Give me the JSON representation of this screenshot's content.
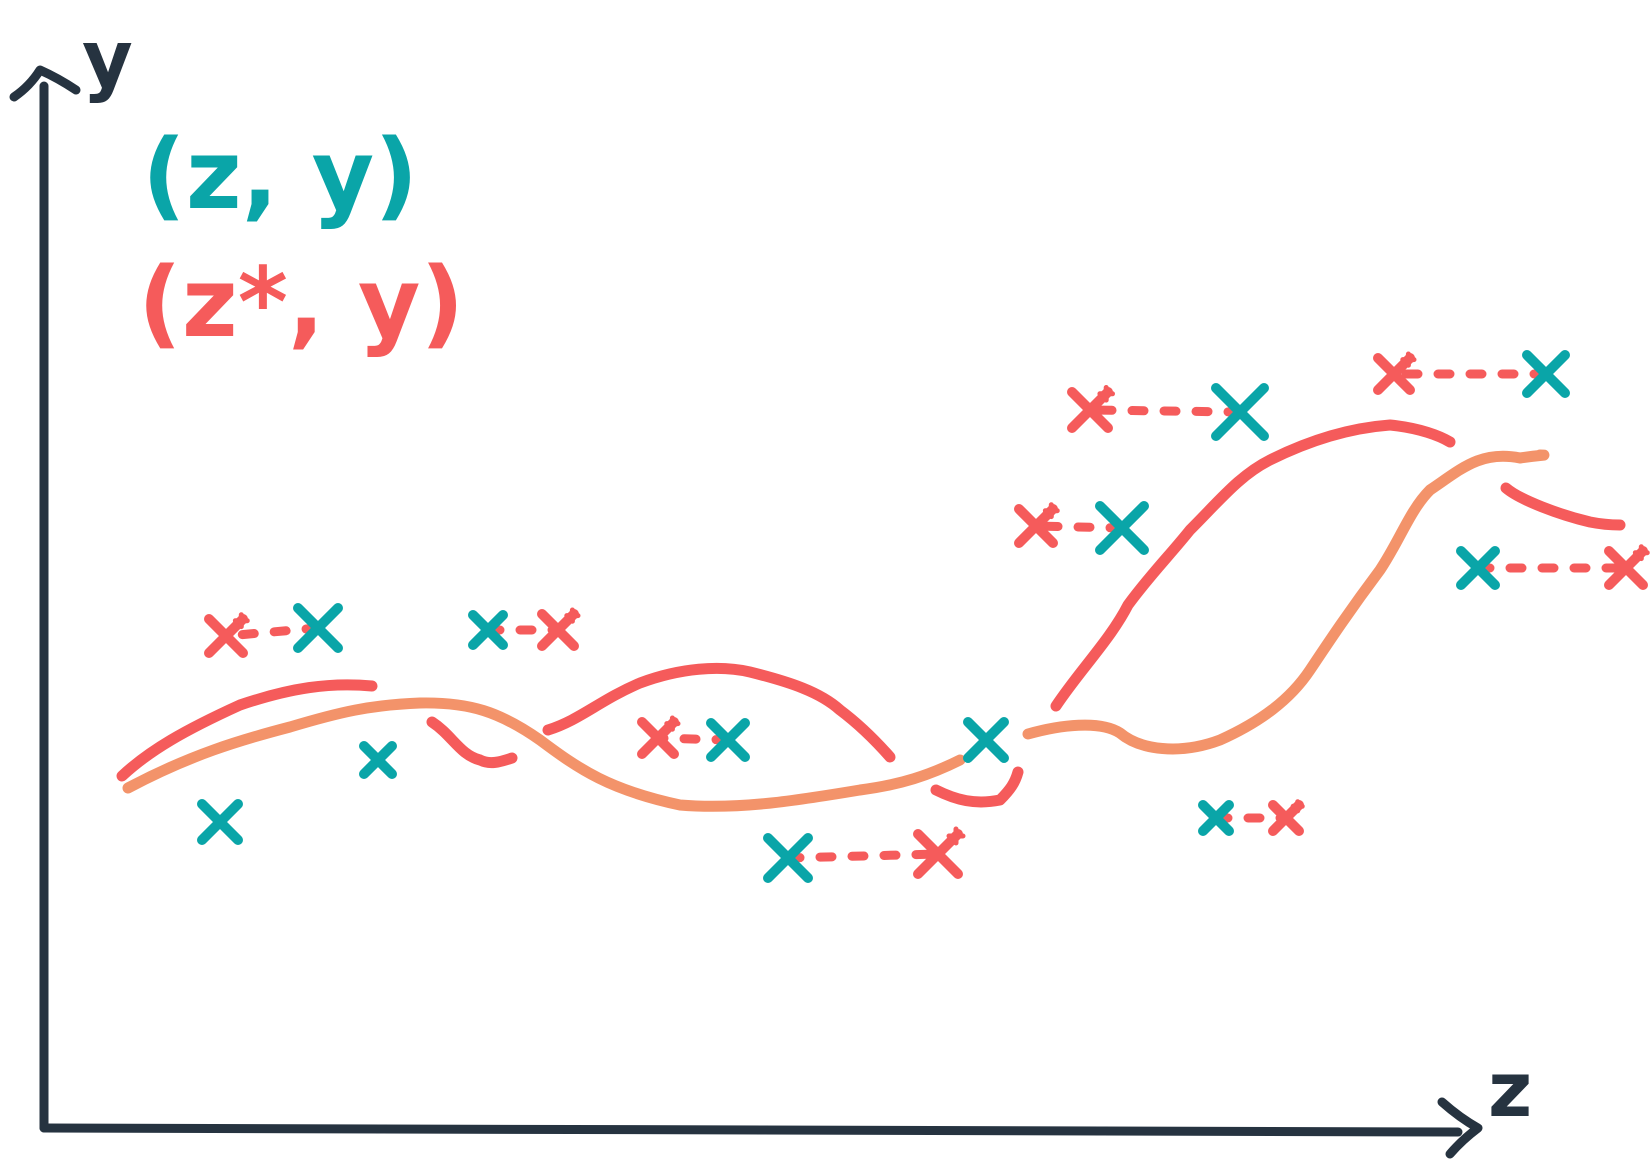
{
  "colors": {
    "axis": "#263340",
    "original": "#0aa5a8",
    "counterfactual": "#f55b5b",
    "curve_red": "#f55b5b",
    "curve_orange": "#f3936a",
    "background": "#ffffff"
  },
  "axes": {
    "x_label": "z",
    "y_label": "y"
  },
  "legend": {
    "original_label": "(z, y)",
    "counterfactual_label": "(z*, y)"
  },
  "markers": {
    "original_symbol": "x",
    "counterfactual_symbol": "x*"
  },
  "icons": {
    "x_arrow": "arrow-right-icon",
    "y_arrow": "arrow-up-icon",
    "link": "dashed-link-icon"
  }
}
